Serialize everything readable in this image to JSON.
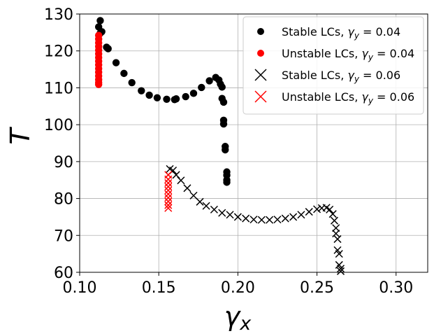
{
  "chart_data": {
    "type": "scatter",
    "title": "",
    "xlabel": "γ",
    "xlabel_sub": "x",
    "ylabel": "T",
    "xlim": [
      0.1,
      0.32
    ],
    "ylim": [
      60,
      130
    ],
    "xticks": [
      0.1,
      0.15,
      0.2,
      0.25,
      0.3
    ],
    "xtick_labels": [
      "0.10",
      "0.15",
      "0.20",
      "0.25",
      "0.30"
    ],
    "yticks": [
      60,
      70,
      80,
      90,
      100,
      110,
      120,
      130
    ],
    "ytick_labels": [
      "60",
      "70",
      "80",
      "90",
      "100",
      "110",
      "120",
      "130"
    ],
    "grid": true,
    "legend_position": "top-right",
    "series": [
      {
        "legend_prefix": "Stable LCs, ",
        "legend_var": "γ",
        "legend_sub": "y",
        "legend_value": " = 0.04",
        "marker": "circle",
        "color": "#000000",
        "points": [
          [
            0.113,
            128.2
          ],
          [
            0.112,
            126.5
          ],
          [
            0.113,
            124.8
          ],
          [
            0.114,
            125.2
          ],
          [
            0.117,
            121.0
          ],
          [
            0.118,
            120.6
          ],
          [
            0.123,
            116.8
          ],
          [
            0.128,
            113.9
          ],
          [
            0.133,
            111.4
          ],
          [
            0.139,
            109.2
          ],
          [
            0.144,
            108.0
          ],
          [
            0.149,
            107.3
          ],
          [
            0.155,
            106.9
          ],
          [
            0.16,
            106.8
          ],
          [
            0.161,
            107.0
          ],
          [
            0.167,
            107.6
          ],
          [
            0.172,
            108.5
          ],
          [
            0.177,
            110.1
          ],
          [
            0.182,
            111.9
          ],
          [
            0.186,
            112.8
          ],
          [
            0.188,
            112.1
          ],
          [
            0.189,
            111.0
          ],
          [
            0.19,
            110.2
          ],
          [
            0.19,
            107.1
          ],
          [
            0.191,
            106.1
          ],
          [
            0.191,
            101.2
          ],
          [
            0.191,
            100.2
          ],
          [
            0.192,
            94.1
          ],
          [
            0.192,
            93.2
          ],
          [
            0.193,
            87.2
          ],
          [
            0.193,
            86.3
          ],
          [
            0.193,
            85.0
          ],
          [
            0.193,
            84.4
          ]
        ]
      },
      {
        "legend_prefix": "Unstable LCs, ",
        "legend_var": "γ",
        "legend_sub": "y",
        "legend_value": " = 0.04",
        "marker": "circle",
        "color": "#ff0000",
        "points": [
          [
            0.112,
            124.2
          ],
          [
            0.112,
            123.2
          ],
          [
            0.112,
            122.2
          ],
          [
            0.112,
            121.2
          ],
          [
            0.112,
            120.2
          ],
          [
            0.112,
            119.2
          ],
          [
            0.112,
            118.2
          ],
          [
            0.112,
            117.2
          ],
          [
            0.112,
            116.2
          ],
          [
            0.112,
            115.2
          ],
          [
            0.112,
            114.2
          ],
          [
            0.112,
            113.2
          ],
          [
            0.112,
            112.2
          ],
          [
            0.112,
            111.4
          ],
          [
            0.112,
            110.9
          ]
        ]
      },
      {
        "legend_prefix": "Stable LCs, ",
        "legend_var": "γ",
        "legend_sub": "y",
        "legend_value": " = 0.06",
        "marker": "x",
        "color": "#000000",
        "points": [
          [
            0.157,
            88.0
          ],
          [
            0.159,
            87.6
          ],
          [
            0.161,
            86.4
          ],
          [
            0.164,
            84.9
          ],
          [
            0.168,
            82.8
          ],
          [
            0.172,
            80.8
          ],
          [
            0.176,
            79.1
          ],
          [
            0.18,
            78.0
          ],
          [
            0.185,
            77.0
          ],
          [
            0.19,
            76.1
          ],
          [
            0.195,
            75.6
          ],
          [
            0.2,
            75.0
          ],
          [
            0.205,
            74.6
          ],
          [
            0.21,
            74.3
          ],
          [
            0.215,
            74.2
          ],
          [
            0.22,
            74.2
          ],
          [
            0.225,
            74.3
          ],
          [
            0.23,
            74.6
          ],
          [
            0.235,
            75.0
          ],
          [
            0.24,
            75.6
          ],
          [
            0.245,
            76.4
          ],
          [
            0.25,
            77.1
          ],
          [
            0.253,
            77.4
          ],
          [
            0.256,
            77.5
          ],
          [
            0.258,
            77.0
          ],
          [
            0.26,
            75.8
          ],
          [
            0.261,
            74.0
          ],
          [
            0.262,
            72.0
          ],
          [
            0.262,
            70.5
          ],
          [
            0.263,
            69.0
          ],
          [
            0.263,
            66.0
          ],
          [
            0.264,
            65.0
          ],
          [
            0.264,
            62.0
          ],
          [
            0.265,
            61.0
          ],
          [
            0.265,
            60.3
          ]
        ]
      },
      {
        "legend_prefix": "Unstable LCs, ",
        "legend_var": "γ",
        "legend_sub": "y",
        "legend_value": " = 0.06",
        "marker": "x",
        "color": "#ff0000",
        "points": [
          [
            0.156,
            86.4
          ],
          [
            0.156,
            85.2
          ],
          [
            0.156,
            84.2
          ],
          [
            0.156,
            83.2
          ],
          [
            0.156,
            82.2
          ],
          [
            0.156,
            81.2
          ],
          [
            0.156,
            80.2
          ],
          [
            0.156,
            79.2
          ],
          [
            0.156,
            78.2
          ],
          [
            0.156,
            77.4
          ]
        ]
      }
    ]
  }
}
